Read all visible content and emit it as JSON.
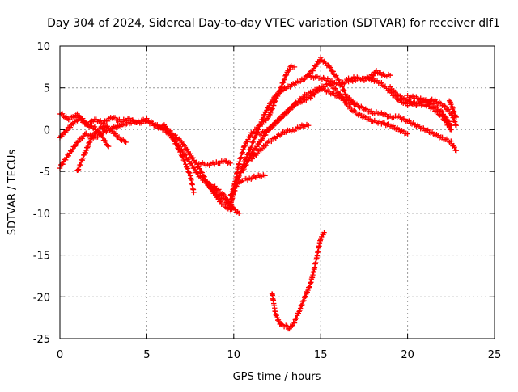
{
  "chart_data": {
    "type": "scatter",
    "title": "Day 304 of 2024, Sidereal Day-to-day VTEC variation (SDTVAR) for receiver dlf1",
    "xlabel": "GPS time / hours",
    "ylabel": "SDTVAR / TECUs",
    "xlim": [
      0,
      25
    ],
    "ylim": [
      -25,
      10
    ],
    "xticks": [
      "0",
      "5",
      "10",
      "15",
      "20",
      "25"
    ],
    "yticks": [
      "-25",
      "-20",
      "-15",
      "-10",
      "-5",
      "0",
      "5",
      "10"
    ],
    "grid": true,
    "marker": "+",
    "color": "#ff0000",
    "series": [
      {
        "name": "track-1",
        "x": [
          0,
          0.5,
          1.0,
          1.5,
          2.0,
          2.5,
          3.0,
          3.5,
          4.0,
          4.5,
          5.0,
          5.5,
          6.0,
          6.5,
          7.0,
          7.5,
          8.0,
          8.5,
          9.0,
          9.3,
          9.6,
          9.9
        ],
        "y": [
          2.0,
          1.2,
          1.8,
          0.5,
          1.2,
          0.8,
          1.5,
          1.0,
          1.3,
          0.8,
          1.0,
          0.5,
          0.3,
          -0.5,
          -1.5,
          -3.0,
          -4.5,
          -6.5,
          -8.0,
          -8.8,
          -9.3,
          -9.5
        ]
      },
      {
        "name": "track-2",
        "x": [
          0,
          0.5,
          1.0,
          1.5,
          2.0,
          2.5,
          3.0,
          3.5,
          4.0,
          4.5,
          5.0,
          5.5,
          6.0,
          6.5,
          7.0,
          7.5,
          7.7
        ],
        "y": [
          -4.5,
          -3.0,
          -1.5,
          -0.5,
          -1.0,
          -0.3,
          0.2,
          0.5,
          0.8,
          1.0,
          1.2,
          0.5,
          0.0,
          -1.0,
          -3.0,
          -5.5,
          -7.5
        ]
      },
      {
        "name": "track-3",
        "x": [
          0,
          0.4,
          0.8,
          1.2,
          1.6,
          2.0,
          2.4,
          2.8
        ],
        "y": [
          -1.0,
          0.0,
          0.8,
          1.5,
          0.5,
          0.2,
          -0.8,
          -2.0
        ]
      },
      {
        "name": "track-4",
        "x": [
          1.0,
          1.4,
          1.8,
          2.2,
          2.6,
          3.0,
          3.4,
          3.8
        ],
        "y": [
          -5.0,
          -3.0,
          -1.0,
          0.0,
          0.5,
          -0.2,
          -1.0,
          -1.5
        ]
      },
      {
        "name": "track-5",
        "x": [
          6.0,
          6.5,
          7.0,
          7.5,
          8.0,
          8.5,
          9.0,
          9.5,
          10.0,
          10.3
        ],
        "y": [
          0.5,
          -1.0,
          -2.5,
          -4.0,
          -5.5,
          -6.5,
          -7.5,
          -8.5,
          -9.5,
          -10.0
        ]
      },
      {
        "name": "track-6",
        "x": [
          8.0,
          8.5,
          9.0,
          9.5,
          9.8
        ],
        "y": [
          -4.0,
          -4.2,
          -4.0,
          -3.8,
          -4.0
        ]
      },
      {
        "name": "track-7",
        "x": [
          8.5,
          9.0,
          9.5,
          9.8,
          10.0,
          10.2,
          10.5,
          11.0,
          11.5,
          11.8
        ],
        "y": [
          -6.5,
          -7.0,
          -8.0,
          -9.0,
          -7.5,
          -6.5,
          -6.0,
          -5.8,
          -5.5,
          -5.5
        ]
      },
      {
        "name": "track-8",
        "x": [
          9.8,
          10.0,
          10.3,
          10.6,
          11.0,
          11.5,
          12.0,
          12.3,
          12.6,
          12.9,
          13.1,
          13.3,
          13.5
        ],
        "y": [
          -9.5,
          -7.0,
          -4.0,
          -2.0,
          -0.5,
          0.5,
          1.5,
          3.0,
          4.5,
          6.0,
          7.0,
          7.5,
          7.5
        ]
      },
      {
        "name": "track-9",
        "x": [
          9.8,
          10.2,
          10.6,
          11.0,
          11.4,
          11.8,
          12.2,
          12.6,
          13.0,
          13.5,
          14.0,
          14.5,
          15.0,
          15.5,
          16.0,
          16.5,
          17.0
        ],
        "y": [
          -8.0,
          -6.0,
          -4.0,
          -2.0,
          0.0,
          2.0,
          3.5,
          4.5,
          5.0,
          5.5,
          6.0,
          7.0,
          8.5,
          7.5,
          6.0,
          4.0,
          3.0
        ]
      },
      {
        "name": "track-10",
        "x": [
          10.5,
          11.0,
          11.5,
          12.0,
          12.5,
          13.0,
          13.5,
          14.0,
          14.5,
          15.0,
          15.5,
          16.0,
          16.5,
          17.0,
          17.5,
          18.0,
          18.5,
          19.0,
          19.5,
          20.0
        ],
        "y": [
          -5.0,
          -3.0,
          -1.5,
          0.0,
          1.0,
          2.0,
          3.0,
          3.5,
          4.0,
          5.0,
          5.5,
          4.5,
          3.0,
          2.0,
          1.5,
          1.0,
          0.8,
          0.5,
          0.0,
          -0.5
        ]
      },
      {
        "name": "track-11",
        "x": [
          11.0,
          11.5,
          12.0,
          12.5,
          13.0,
          13.5,
          14.0,
          14.3
        ],
        "y": [
          -3.5,
          -2.5,
          -1.5,
          -0.8,
          -0.2,
          0.0,
          0.5,
          0.5
        ]
      },
      {
        "name": "track-12",
        "x": [
          11.5,
          12.0,
          12.5,
          13.0,
          13.5,
          14.0,
          14.5,
          15.0,
          15.5,
          16.0,
          16.5,
          17.0,
          17.5,
          18.0,
          18.5,
          19.0,
          19.5,
          20.0,
          20.5,
          21.0,
          21.5,
          22.0,
          22.5,
          22.8
        ],
        "y": [
          -0.5,
          0.0,
          1.0,
          2.0,
          3.0,
          4.0,
          4.5,
          5.0,
          4.5,
          4.0,
          3.5,
          3.0,
          2.5,
          2.0,
          2.0,
          1.5,
          1.5,
          1.0,
          0.5,
          0.0,
          -0.5,
          -1.0,
          -1.5,
          -2.5
        ]
      },
      {
        "name": "track-13",
        "x": [
          14.2,
          14.6,
          15.0,
          15.4,
          15.8,
          16.2,
          16.6,
          17.0,
          17.5,
          18.0,
          18.5,
          19.0,
          19.5,
          20.0,
          20.5,
          21.0,
          21.5,
          22.0,
          22.5
        ],
        "y": [
          6.5,
          6.3,
          6.2,
          6.0,
          5.5,
          5.5,
          5.8,
          6.0,
          6.2,
          6.0,
          5.5,
          4.5,
          3.5,
          3.0,
          3.2,
          3.5,
          3.0,
          2.0,
          0.5
        ]
      },
      {
        "name": "track-14",
        "x": [
          16.5,
          17.0,
          17.5,
          18.0,
          18.2,
          18.6,
          19.0
        ],
        "y": [
          6.0,
          6.2,
          6.0,
          6.5,
          7.0,
          6.5,
          6.5
        ]
      },
      {
        "name": "track-15",
        "x": [
          19.0,
          19.5,
          20.0,
          20.5,
          21.0,
          21.5,
          22.0,
          22.5
        ],
        "y": [
          5.0,
          4.0,
          3.5,
          3.0,
          3.0,
          2.5,
          1.5,
          0.0
        ]
      },
      {
        "name": "track-16",
        "x": [
          20.0,
          20.5,
          21.0,
          21.5,
          22.0,
          22.5,
          22.8
        ],
        "y": [
          4.0,
          3.8,
          3.5,
          3.5,
          3.0,
          2.0,
          0.5
        ]
      },
      {
        "name": "track-17",
        "x": [
          22.4,
          22.6,
          22.8
        ],
        "y": [
          3.5,
          2.5,
          1.5
        ]
      },
      {
        "name": "track-18",
        "x": [
          12.2,
          12.4,
          12.6,
          12.8,
          13.0,
          13.2,
          13.5,
          13.8,
          14.0,
          14.2,
          14.4,
          14.6,
          14.8,
          15.0,
          15.2
        ],
        "y": [
          -19.5,
          -22.0,
          -23.0,
          -23.5,
          -23.5,
          -23.8,
          -23.0,
          -21.5,
          -20.5,
          -19.5,
          -18.5,
          -17.0,
          -15.0,
          -13.0,
          -12.3
        ]
      }
    ]
  }
}
